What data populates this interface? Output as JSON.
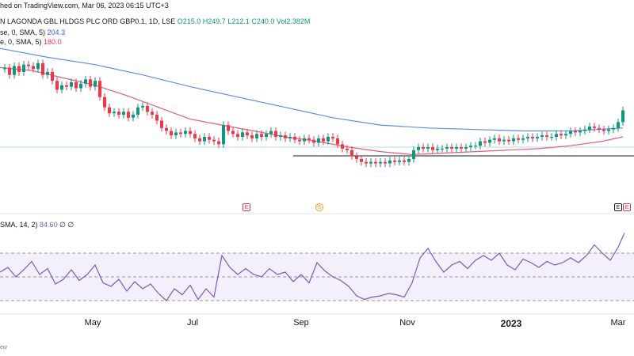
{
  "header": {
    "published": "hed on TradingView.com, Mar 06, 2023 06:15 UTC+3",
    "title": "N LAGONDA GBL HLDGS PLC ORD GBP0.1, 1D, LSE",
    "ohlc": "O215.0 H249.7 L212.1 C240.0 Vol2.382M",
    "ma1_label": "se, 0, SMA, 5)",
    "ma1_value": "204.3",
    "ma2_label": "e, 0, SMA, 5)",
    "ma2_value": "180.0",
    "rsi_label": "SMA, 14, 2)",
    "rsi_value": "84.60",
    "rsi_extra": "∅ ∅"
  },
  "footer": {
    "text": "ew"
  },
  "events": {
    "e1": "E",
    "s1": "S",
    "e2": "E",
    "e3": "E"
  },
  "colors": {
    "up": "#089981",
    "down": "#f23645",
    "ma_blue": "#5b8def",
    "ma_red": "#ec5b7a",
    "rsi": "#7e57c2"
  },
  "chart_data": [
    {
      "type": "candlestick",
      "title": "N LAGONDA GBL HLDGS PLC ORD GBP0.1, 1D, LSE",
      "x_tick_labels": [
        "May",
        "Jul",
        "Sep",
        "Nov",
        "2023",
        "Mar"
      ],
      "horizontal_line_level": "resistance near prior peaks",
      "close_series": [
        [
          0,
          150
        ],
        [
          6,
          151
        ],
        [
          12,
          146
        ],
        [
          18,
          152
        ],
        [
          24,
          148
        ],
        [
          30,
          153
        ],
        [
          36,
          152
        ],
        [
          42,
          150
        ],
        [
          48,
          154
        ],
        [
          54,
          146
        ],
        [
          60,
          148
        ],
        [
          66,
          142
        ],
        [
          72,
          136
        ],
        [
          78,
          139
        ],
        [
          84,
          138
        ],
        [
          90,
          141
        ],
        [
          96,
          137
        ],
        [
          102,
          140
        ],
        [
          108,
          143
        ],
        [
          114,
          138
        ],
        [
          120,
          142
        ],
        [
          126,
          131
        ],
        [
          132,
          124
        ],
        [
          138,
          120
        ],
        [
          144,
          121
        ],
        [
          150,
          119
        ],
        [
          156,
          121
        ],
        [
          162,
          117
        ],
        [
          168,
          119
        ],
        [
          174,
          124
        ],
        [
          180,
          125
        ],
        [
          186,
          121
        ],
        [
          192,
          119
        ],
        [
          198,
          115
        ],
        [
          204,
          110
        ],
        [
          210,
          108
        ],
        [
          216,
          105
        ],
        [
          222,
          107
        ],
        [
          228,
          106
        ],
        [
          234,
          108
        ],
        [
          240,
          106
        ],
        [
          246,
          103
        ],
        [
          252,
          101
        ],
        [
          258,
          104
        ],
        [
          264,
          102
        ],
        [
          270,
          101
        ],
        [
          276,
          99
        ],
        [
          282,
          112
        ],
        [
          288,
          108
        ],
        [
          294,
          106
        ],
        [
          300,
          104
        ],
        [
          306,
          107
        ],
        [
          312,
          105
        ],
        [
          318,
          103
        ],
        [
          324,
          106
        ],
        [
          330,
          104
        ],
        [
          336,
          106
        ],
        [
          342,
          108
        ],
        [
          348,
          104
        ],
        [
          354,
          105
        ],
        [
          360,
          103
        ],
        [
          366,
          104
        ],
        [
          372,
          102
        ],
        [
          378,
          101
        ],
        [
          384,
          103
        ],
        [
          390,
          102
        ],
        [
          396,
          100
        ],
        [
          402,
          103
        ],
        [
          408,
          101
        ],
        [
          414,
          104
        ],
        [
          420,
          103
        ],
        [
          426,
          99
        ],
        [
          432,
          96
        ],
        [
          438,
          95
        ],
        [
          444,
          91
        ],
        [
          450,
          89
        ],
        [
          456,
          87
        ],
        [
          462,
          86
        ],
        [
          468,
          87
        ],
        [
          474,
          86
        ],
        [
          480,
          87
        ],
        [
          486,
          86
        ],
        [
          492,
          88
        ],
        [
          498,
          87
        ],
        [
          504,
          88
        ],
        [
          510,
          87
        ],
        [
          516,
          89
        ],
        [
          522,
          95
        ],
        [
          528,
          97
        ],
        [
          534,
          96
        ],
        [
          540,
          97
        ],
        [
          546,
          95
        ],
        [
          552,
          96
        ],
        [
          558,
          96
        ],
        [
          564,
          97
        ],
        [
          570,
          96
        ],
        [
          576,
          97
        ],
        [
          582,
          96
        ],
        [
          588,
          97
        ],
        [
          594,
          98
        ],
        [
          600,
          98
        ],
        [
          606,
          101
        ],
        [
          612,
          100
        ],
        [
          618,
          102
        ],
        [
          624,
          103
        ],
        [
          630,
          101
        ],
        [
          636,
          102
        ],
        [
          642,
          101
        ],
        [
          648,
          103
        ],
        [
          654,
          102
        ],
        [
          660,
          103
        ],
        [
          666,
          104
        ],
        [
          672,
          103
        ],
        [
          678,
          104
        ],
        [
          684,
          105
        ],
        [
          690,
          104
        ],
        [
          696,
          104
        ],
        [
          702,
          106
        ],
        [
          708,
          105
        ],
        [
          714,
          106
        ],
        [
          720,
          108
        ],
        [
          726,
          107
        ],
        [
          732,
          108
        ],
        [
          738,
          109
        ],
        [
          744,
          111
        ],
        [
          750,
          110
        ],
        [
          756,
          109
        ],
        [
          762,
          108
        ],
        [
          768,
          109
        ],
        [
          774,
          110
        ],
        [
          780,
          114
        ],
        [
          786,
          122
        ]
      ],
      "ma_long": [
        [
          0,
          164
        ],
        [
          60,
          158
        ],
        [
          120,
          153
        ],
        [
          180,
          146
        ],
        [
          240,
          138
        ],
        [
          300,
          131
        ],
        [
          360,
          124
        ],
        [
          420,
          117
        ],
        [
          480,
          112
        ],
        [
          540,
          110
        ],
        [
          600,
          109
        ],
        [
          660,
          108
        ],
        [
          720,
          108
        ],
        [
          786,
          110
        ]
      ],
      "ma_short": [
        [
          0,
          151
        ],
        [
          40,
          149
        ],
        [
          80,
          144
        ],
        [
          120,
          139
        ],
        [
          160,
          132
        ],
        [
          200,
          124
        ],
        [
          240,
          116
        ],
        [
          280,
          112
        ],
        [
          320,
          108
        ],
        [
          360,
          104
        ],
        [
          400,
          101
        ],
        [
          440,
          97
        ],
        [
          480,
          94
        ],
        [
          520,
          92
        ],
        [
          560,
          93
        ],
        [
          600,
          94
        ],
        [
          640,
          95
        ],
        [
          680,
          96
        ],
        [
          720,
          98
        ],
        [
          760,
          101
        ],
        [
          786,
          104
        ]
      ]
    },
    {
      "type": "line",
      "title": "RSI",
      "ylim": [
        20,
        90
      ],
      "levels": [
        70,
        50,
        30
      ],
      "series": [
        {
          "values": [
            [
              0,
              54
            ],
            [
              10,
              58
            ],
            [
              20,
              50
            ],
            [
              30,
              56
            ],
            [
              40,
              63
            ],
            [
              50,
              52
            ],
            [
              60,
              57
            ],
            [
              70,
              44
            ],
            [
              80,
              48
            ],
            [
              90,
              56
            ],
            [
              100,
              47
            ],
            [
              110,
              52
            ],
            [
              120,
              60
            ],
            [
              130,
              45
            ],
            [
              140,
              42
            ],
            [
              150,
              48
            ],
            [
              160,
              38
            ],
            [
              170,
              46
            ],
            [
              180,
              40
            ],
            [
              190,
              44
            ],
            [
              200,
              36
            ],
            [
              210,
              30
            ],
            [
              220,
              40
            ],
            [
              230,
              35
            ],
            [
              240,
              43
            ],
            [
              250,
              31
            ],
            [
              260,
              40
            ],
            [
              270,
              33
            ],
            [
              280,
              68
            ],
            [
              290,
              58
            ],
            [
              300,
              52
            ],
            [
              310,
              57
            ],
            [
              320,
              52
            ],
            [
              330,
              50
            ],
            [
              340,
              57
            ],
            [
              350,
              52
            ],
            [
              360,
              54
            ],
            [
              370,
              46
            ],
            [
              380,
              52
            ],
            [
              390,
              45
            ],
            [
              400,
              62
            ],
            [
              410,
              55
            ],
            [
              420,
              50
            ],
            [
              430,
              47
            ],
            [
              440,
              42
            ],
            [
              450,
              34
            ],
            [
              460,
              31
            ],
            [
              470,
              33
            ],
            [
              480,
              34
            ],
            [
              490,
              36
            ],
            [
              500,
              35
            ],
            [
              510,
              33
            ],
            [
              520,
              45
            ],
            [
              530,
              66
            ],
            [
              540,
              74
            ],
            [
              550,
              63
            ],
            [
              560,
              54
            ],
            [
              570,
              60
            ],
            [
              580,
              63
            ],
            [
              590,
              57
            ],
            [
              600,
              64
            ],
            [
              610,
              68
            ],
            [
              620,
              64
            ],
            [
              630,
              70
            ],
            [
              640,
              60
            ],
            [
              650,
              56
            ],
            [
              660,
              65
            ],
            [
              670,
              62
            ],
            [
              680,
              58
            ],
            [
              690,
              63
            ],
            [
              700,
              60
            ],
            [
              710,
              62
            ],
            [
              720,
              66
            ],
            [
              730,
              62
            ],
            [
              740,
              68
            ],
            [
              750,
              77
            ],
            [
              760,
              70
            ],
            [
              770,
              64
            ],
            [
              780,
              75
            ],
            [
              788,
              87
            ]
          ]
        }
      ]
    }
  ]
}
